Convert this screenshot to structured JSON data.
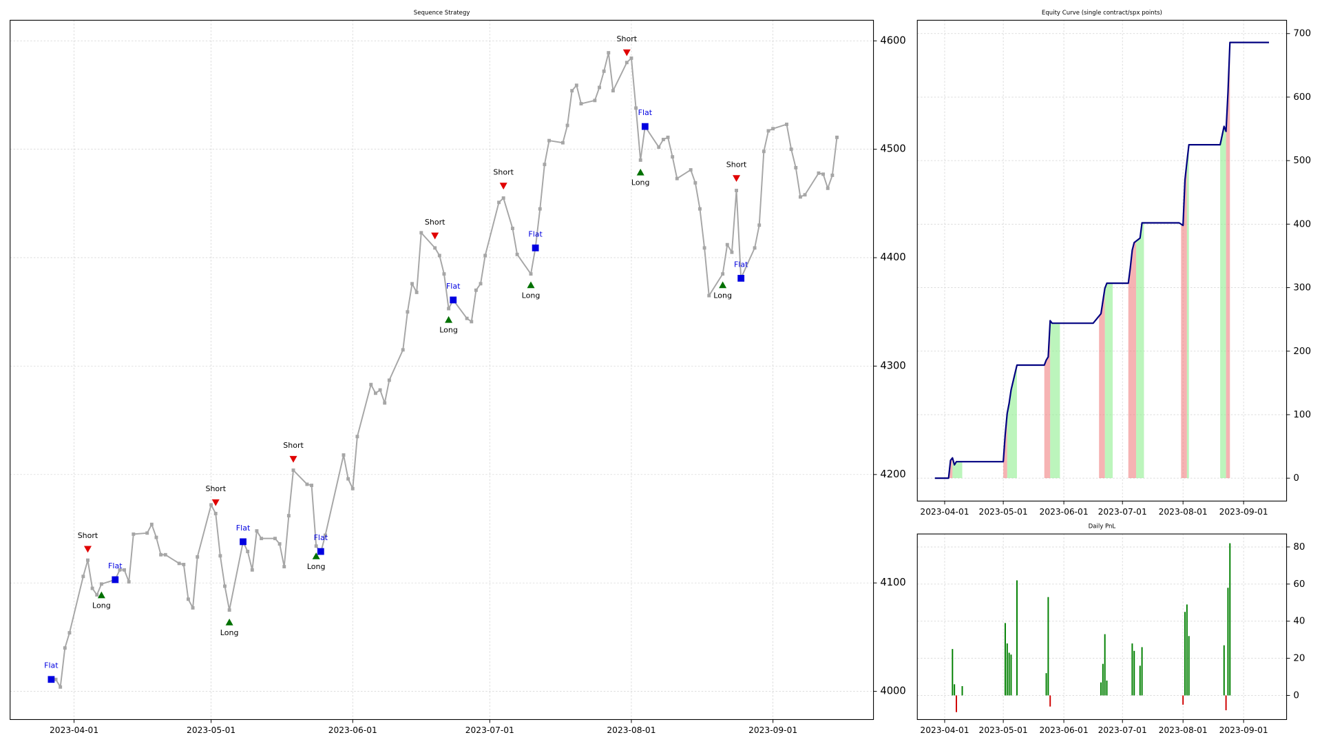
{
  "chart_data": [
    {
      "type": "line",
      "title": "Sequence Strategy",
      "x": [
        "2023-03-28",
        "2023-03-29",
        "2023-03-30",
        "2023-03-31",
        "2023-04-03",
        "2023-04-04",
        "2023-04-05",
        "2023-04-06",
        "2023-04-07",
        "2023-04-10",
        "2023-04-11",
        "2023-04-12",
        "2023-04-13",
        "2023-04-14",
        "2023-04-17",
        "2023-04-18",
        "2023-04-19",
        "2023-04-20",
        "2023-04-21",
        "2023-04-24",
        "2023-04-25",
        "2023-04-26",
        "2023-04-27",
        "2023-04-28",
        "2023-05-01",
        "2023-05-02",
        "2023-05-03",
        "2023-05-04",
        "2023-05-05",
        "2023-05-08",
        "2023-05-09",
        "2023-05-10",
        "2023-05-11",
        "2023-05-12",
        "2023-05-15",
        "2023-05-16",
        "2023-05-17",
        "2023-05-18",
        "2023-05-19",
        "2023-05-22",
        "2023-05-23",
        "2023-05-24",
        "2023-05-25",
        "2023-05-26",
        "2023-05-30",
        "2023-05-31",
        "2023-06-01",
        "2023-06-02",
        "2023-06-05",
        "2023-06-06",
        "2023-06-07",
        "2023-06-08",
        "2023-06-09",
        "2023-06-12",
        "2023-06-13",
        "2023-06-14",
        "2023-06-15",
        "2023-06-16",
        "2023-06-19",
        "2023-06-20",
        "2023-06-21",
        "2023-06-22",
        "2023-06-23",
        "2023-06-26",
        "2023-06-27",
        "2023-06-28",
        "2023-06-29",
        "2023-06-30",
        "2023-07-03",
        "2023-07-04",
        "2023-07-06",
        "2023-07-07",
        "2023-07-10",
        "2023-07-11",
        "2023-07-12",
        "2023-07-13",
        "2023-07-14",
        "2023-07-17",
        "2023-07-18",
        "2023-07-19",
        "2023-07-20",
        "2023-07-21",
        "2023-07-24",
        "2023-07-25",
        "2023-07-26",
        "2023-07-27",
        "2023-07-28",
        "2023-07-31",
        "2023-08-01",
        "2023-08-02",
        "2023-08-03",
        "2023-08-04",
        "2023-08-07",
        "2023-08-08",
        "2023-08-09",
        "2023-08-10",
        "2023-08-11",
        "2023-08-14",
        "2023-08-15",
        "2023-08-16",
        "2023-08-17",
        "2023-08-18",
        "2023-08-21",
        "2023-08-22",
        "2023-08-23",
        "2023-08-24",
        "2023-08-25",
        "2023-08-28",
        "2023-08-29",
        "2023-08-30",
        "2023-08-31",
        "2023-09-01",
        "2023-09-04",
        "2023-09-05",
        "2023-09-06",
        "2023-09-07",
        "2023-09-08",
        "2023-09-11",
        "2023-09-12",
        "2023-09-13",
        "2023-09-14",
        "2023-09-15"
      ],
      "values": [
        4011,
        4004,
        4040,
        4054,
        4106,
        4121,
        4095,
        4089,
        4099,
        4103,
        4112,
        4112,
        4101,
        4145,
        4146,
        4154,
        4142,
        4126,
        4126,
        4118,
        4117,
        4085,
        4077,
        4124,
        4172,
        4164,
        4125,
        4097,
        4075,
        4138,
        4129,
        4112,
        4148,
        4141,
        4141,
        4136,
        4115,
        4162,
        4204,
        4191,
        4190,
        4134,
        4128,
        4144,
        4218,
        4196,
        4187,
        4235,
        4283,
        4275,
        4278,
        4266,
        4287,
        4315,
        4350,
        4376,
        4368,
        4423,
        4409,
        4402,
        4385,
        4353,
        4361,
        4344,
        4341,
        4370,
        4376,
        4402,
        4451,
        4455,
        4427,
        4403,
        4385,
        4409,
        4445,
        4486,
        4508,
        4506,
        4522,
        4554,
        4559,
        4542,
        4545,
        4557,
        4572,
        4589,
        4554,
        4580,
        4584,
        4538,
        4490,
        4521,
        4502,
        4509,
        4511,
        4493,
        4473,
        4481,
        4469,
        4445,
        4409,
        4365,
        4385,
        4412,
        4405,
        4462,
        4381,
        4409,
        4430,
        4498,
        4517,
        4519,
        4523,
        4500,
        4483,
        4456,
        4458,
        4478,
        4477,
        4464,
        4476,
        4511
      ],
      "color": "#a6a6a6",
      "point_markers": true,
      "signals": [
        {
          "name": "Short",
          "color": "#e00000",
          "marker": "v",
          "x": [
            "2023-04-04",
            "2023-05-02",
            "2023-05-19",
            "2023-06-19",
            "2023-07-04",
            "2023-07-31",
            "2023-08-24"
          ],
          "y": [
            4131,
            4174,
            4214,
            4420,
            4466,
            4589,
            4473
          ]
        },
        {
          "name": "Long",
          "color": "#007000",
          "marker": "^",
          "x": [
            "2023-04-07",
            "2023-05-05",
            "2023-05-24",
            "2023-06-22",
            "2023-07-10",
            "2023-08-03",
            "2023-08-21"
          ],
          "y": [
            4089,
            4064,
            4125,
            4343,
            4375,
            4479,
            4375
          ]
        },
        {
          "name": "Flat",
          "color": "#0000e0",
          "marker": "s",
          "x": [
            "2023-03-27",
            "2023-04-10",
            "2023-05-08",
            "2023-05-25",
            "2023-06-23",
            "2023-07-11",
            "2023-08-04",
            "2023-08-25"
          ],
          "y": [
            4011,
            4103,
            4138,
            4129,
            4361,
            4409,
            4521,
            4381
          ]
        }
      ],
      "xlim": [
        "2023-03-18",
        "2023-09-23"
      ],
      "xticks": [
        "2023-04-01",
        "2023-05-01",
        "2023-06-01",
        "2023-07-01",
        "2023-08-01",
        "2023-09-01"
      ],
      "ylim": [
        3974,
        4619
      ],
      "yticks": [
        4000,
        4100,
        4200,
        4300,
        4400,
        4500,
        4600
      ],
      "grid": true
    },
    {
      "type": "line",
      "title": "Equity Curve (single contract/spx points)",
      "x": [
        "2023-03-27",
        "2023-04-03",
        "2023-04-04",
        "2023-04-05",
        "2023-04-06",
        "2023-04-07",
        "2023-05-01",
        "2023-05-02",
        "2023-05-03",
        "2023-05-04",
        "2023-05-05",
        "2023-05-08",
        "2023-05-22",
        "2023-05-23",
        "2023-05-24",
        "2023-05-25",
        "2023-05-26",
        "2023-06-16",
        "2023-06-20",
        "2023-06-21",
        "2023-06-22",
        "2023-06-23",
        "2023-07-04",
        "2023-07-05",
        "2023-07-06",
        "2023-07-07",
        "2023-07-10",
        "2023-07-11",
        "2023-07-30",
        "2023-08-01",
        "2023-08-02",
        "2023-08-03",
        "2023-08-04",
        "2023-08-20",
        "2023-08-22",
        "2023-08-23",
        "2023-08-24",
        "2023-08-25",
        "2023-09-14"
      ],
      "values": [
        0,
        0,
        28,
        32,
        21,
        26,
        26,
        69,
        102,
        118,
        139,
        178,
        178,
        186,
        191,
        248,
        244,
        244,
        259,
        279,
        299,
        307,
        307,
        331,
        359,
        371,
        378,
        402,
        402,
        398,
        470,
        498,
        525,
        525,
        554,
        546,
        607,
        686,
        686
      ],
      "color": "#000080",
      "shading": [
        {
          "start": "2023-04-03",
          "end": "2023-04-05",
          "color": "#f08080"
        },
        {
          "start": "2023-04-05",
          "end": "2023-04-10",
          "color": "#90ee90"
        },
        {
          "start": "2023-05-01",
          "end": "2023-05-03",
          "color": "#f08080"
        },
        {
          "start": "2023-05-03",
          "end": "2023-05-08",
          "color": "#90ee90"
        },
        {
          "start": "2023-05-22",
          "end": "2023-05-25",
          "color": "#f08080"
        },
        {
          "start": "2023-05-25",
          "end": "2023-05-30",
          "color": "#90ee90"
        },
        {
          "start": "2023-06-19",
          "end": "2023-06-22",
          "color": "#f08080"
        },
        {
          "start": "2023-06-22",
          "end": "2023-06-26",
          "color": "#90ee90"
        },
        {
          "start": "2023-07-04",
          "end": "2023-07-08",
          "color": "#f08080"
        },
        {
          "start": "2023-07-08",
          "end": "2023-07-12",
          "color": "#90ee90"
        },
        {
          "start": "2023-07-31",
          "end": "2023-08-03",
          "color": "#f08080"
        },
        {
          "start": "2023-08-03",
          "end": "2023-08-04",
          "color": "#90ee90"
        },
        {
          "start": "2023-08-20",
          "end": "2023-08-23",
          "color": "#90ee90"
        },
        {
          "start": "2023-08-23",
          "end": "2023-08-25",
          "color": "#f08080"
        }
      ],
      "xlim": [
        "2023-03-18",
        "2023-09-23"
      ],
      "xticks": [
        "2023-04-01",
        "2023-05-01",
        "2023-06-01",
        "2023-07-01",
        "2023-08-01",
        "2023-09-01"
      ],
      "ylim": [
        -36,
        721
      ],
      "yticks": [
        0,
        100,
        200,
        300,
        400,
        500,
        600,
        700
      ],
      "grid": true
    },
    {
      "type": "bar",
      "title": "Daily PnL",
      "x": [
        "2023-04-05",
        "2023-04-06",
        "2023-04-07",
        "2023-04-10",
        "2023-05-02",
        "2023-05-03",
        "2023-05-04",
        "2023-05-05",
        "2023-05-08",
        "2023-05-23",
        "2023-05-24",
        "2023-05-25",
        "2023-06-20",
        "2023-06-21",
        "2023-06-22",
        "2023-06-23",
        "2023-07-06",
        "2023-07-07",
        "2023-07-10",
        "2023-07-11",
        "2023-08-01",
        "2023-08-02",
        "2023-08-03",
        "2023-08-04",
        "2023-08-22",
        "2023-08-23",
        "2023-08-24",
        "2023-08-25"
      ],
      "values": [
        25,
        6,
        -9,
        5,
        39,
        28,
        23,
        22,
        62,
        12,
        53,
        -6,
        7,
        17,
        33,
        8,
        28,
        24,
        16,
        26,
        -5,
        45,
        49,
        32,
        27,
        -8,
        58,
        82
      ],
      "color": "#008000",
      "negative_color": "#d00000",
      "xlim": [
        "2023-03-18",
        "2023-09-23"
      ],
      "xticks": [
        "2023-04-01",
        "2023-05-01",
        "2023-06-01",
        "2023-07-01",
        "2023-08-01",
        "2023-09-01"
      ],
      "ylim": [
        -13,
        87
      ],
      "yticks": [
        0,
        20,
        40,
        60,
        80
      ],
      "grid": true
    }
  ]
}
